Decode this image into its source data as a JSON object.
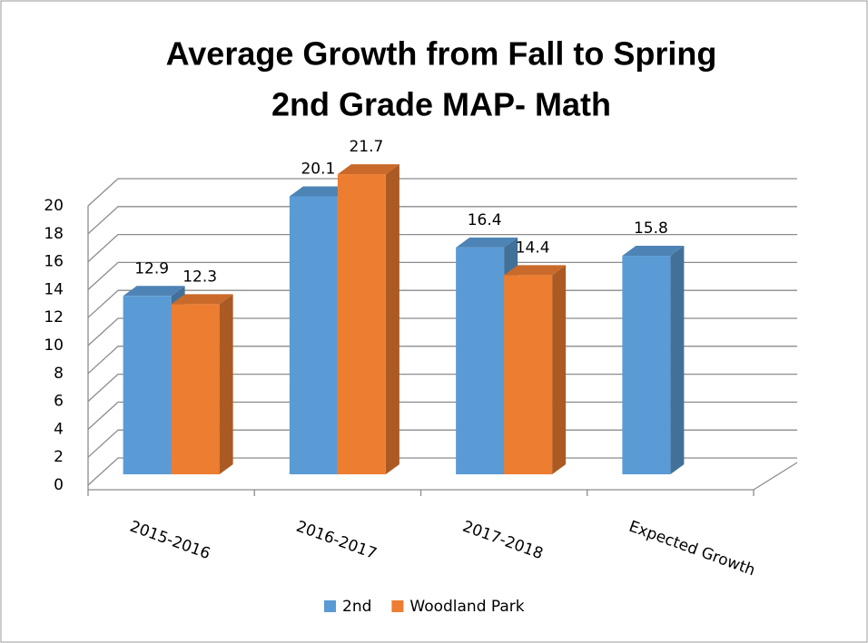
{
  "chart_data": {
    "type": "bar3d",
    "title": [
      "Average Growth from Fall to Spring",
      "2nd Grade MAP- Math"
    ],
    "categories": [
      "2015-2016",
      "2016-2017",
      "2017-2018",
      "Expected Growth"
    ],
    "series": [
      {
        "name": "2nd",
        "color": "#5b9bd5",
        "values": [
          12.9,
          20.1,
          16.4,
          15.8
        ]
      },
      {
        "name": "Woodland Park",
        "color": "#ed7d31",
        "values": [
          12.3,
          21.7,
          14.4,
          null
        ]
      }
    ],
    "ylim": [
      0,
      20
    ],
    "yticks": [
      0,
      2,
      4,
      6,
      8,
      10,
      12,
      14,
      16,
      18,
      20
    ],
    "grid": true,
    "legend": "bottom"
  }
}
